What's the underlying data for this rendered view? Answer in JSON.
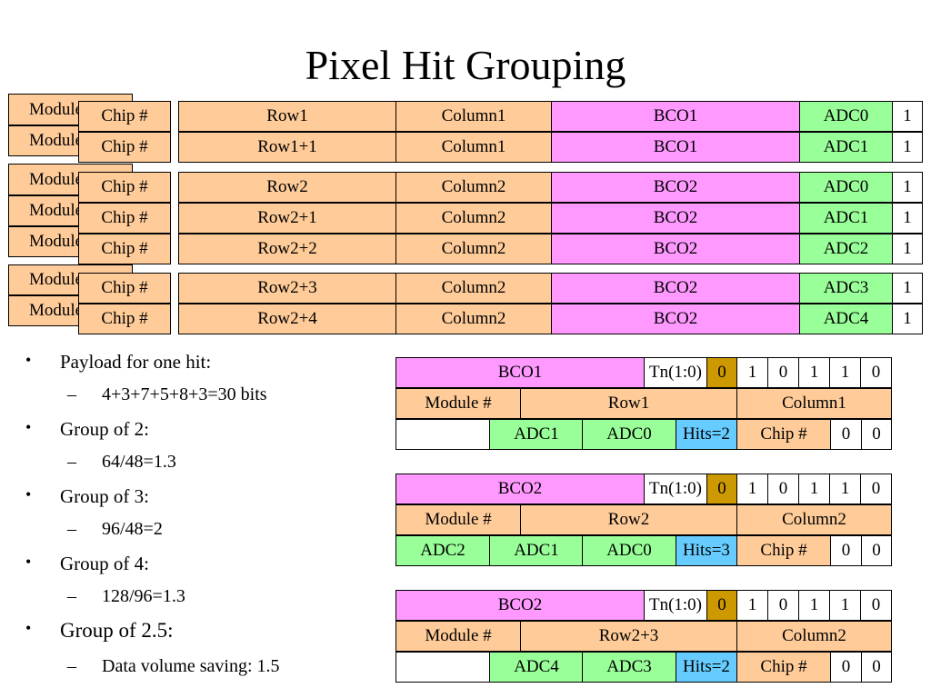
{
  "title": "Pixel Hit Grouping",
  "modules": [
    "Module #",
    "Module #",
    "Module #",
    "Module #",
    "Module #",
    "Module #",
    "Module #"
  ],
  "chip_rows": [
    {
      "chip": "Chip #",
      "row": "Row1",
      "col": "Column1",
      "bco": "BCO1",
      "adc": "ADC0",
      "flag": "1"
    },
    {
      "chip": "Chip #",
      "row": "Row1+1",
      "col": "Column1",
      "bco": "BCO1",
      "adc": "ADC1",
      "flag": "1"
    },
    {
      "chip": "Chip #",
      "row": "Row2",
      "col": "Column2",
      "bco": "BCO2",
      "adc": "ADC0",
      "flag": "1"
    },
    {
      "chip": "Chip #",
      "row": "Row2+1",
      "col": "Column2",
      "bco": "BCO2",
      "adc": "ADC1",
      "flag": "1"
    },
    {
      "chip": "Chip #",
      "row": "Row2+2",
      "col": "Column2",
      "bco": "BCO2",
      "adc": "ADC2",
      "flag": "1"
    },
    {
      "chip": "Chip #",
      "row": "Row2+3",
      "col": "Column2",
      "bco": "BCO2",
      "adc": "ADC3",
      "flag": "1"
    },
    {
      "chip": "Chip #",
      "row": "Row2+4",
      "col": "Column2",
      "bco": "BCO2",
      "adc": "ADC4",
      "flag": "1"
    }
  ],
  "bullets": [
    {
      "level": 1,
      "text": "Payload for one hit:"
    },
    {
      "level": 2,
      "text": "4+3+7+5+8+3=30 bits"
    },
    {
      "level": 1,
      "text": "Group of 2:"
    },
    {
      "level": 2,
      "text": "64/48=1.3"
    },
    {
      "level": 1,
      "text": "Group of 3:"
    },
    {
      "level": 2,
      "text": "96/48=2"
    },
    {
      "level": 1,
      "text": "Group of 4:"
    },
    {
      "level": 2,
      "text": "128/96=1.3"
    },
    {
      "level": 1,
      "text": "Group of 2.5:"
    },
    {
      "level": 2,
      "text": "Data volume saving: 1.5"
    }
  ],
  "bullet_marks": {
    "level1": "•",
    "level2": "–"
  },
  "packets": [
    {
      "bco": "BCO1",
      "tn": "Tn(1:0)",
      "tn_bit": "0",
      "bits": [
        "1",
        "0",
        "1",
        "1",
        "0"
      ],
      "module": "Module #",
      "row": "Row1",
      "col": "Column1",
      "adcs": [
        "",
        "ADC1",
        "ADC0"
      ],
      "hits": "Hits=2",
      "chip": "Chip #",
      "tail": [
        "0",
        "0"
      ]
    },
    {
      "bco": "BCO2",
      "tn": "Tn(1:0)",
      "tn_bit": "0",
      "bits": [
        "1",
        "0",
        "1",
        "1",
        "0"
      ],
      "module": "Module #",
      "row": "Row2",
      "col": "Column2",
      "adcs": [
        "ADC2",
        "ADC1",
        "ADC0"
      ],
      "hits": "Hits=3",
      "chip": "Chip #",
      "tail": [
        "0",
        "0"
      ]
    },
    {
      "bco": "BCO2",
      "tn": "Tn(1:0)",
      "tn_bit": "0",
      "bits": [
        "1",
        "0",
        "1",
        "1",
        "0"
      ],
      "module": "Module #",
      "row": "Row2+3",
      "col": "Column2",
      "adcs": [
        "",
        "ADC4",
        "ADC3"
      ],
      "hits": "Hits=2",
      "chip": "Chip #",
      "tail": [
        "0",
        "0"
      ]
    }
  ],
  "colors": {
    "orange": "#ffcc99",
    "pink": "#ff99ff",
    "green": "#99ff99",
    "blue": "#66ccff",
    "gold": "#cc9900"
  }
}
